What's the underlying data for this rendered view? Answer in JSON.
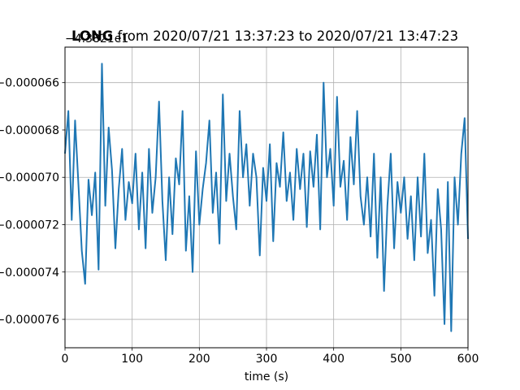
{
  "chart_data": {
    "type": "line",
    "title": "LONG from 2020/07/21 13:37:23 to 2020/07/21 13:47:23",
    "title_bold_part": "LONG",
    "title_rest": " from 2020/07/21 13:37:23 to 2020/07/21 13:47:23",
    "offset_text": "−4.3821e1",
    "xlabel": "time (s)",
    "ylabel": "",
    "xlim": [
      0,
      600
    ],
    "ylim": [
      -7.72e-05,
      -6.45e-05
    ],
    "grid": true,
    "legend": "none",
    "line_color": "#1f77b4",
    "x_ticks": [
      {
        "value": 0,
        "label": "0"
      },
      {
        "value": 100,
        "label": "100"
      },
      {
        "value": 200,
        "label": "200"
      },
      {
        "value": 300,
        "label": "300"
      },
      {
        "value": 400,
        "label": "400"
      },
      {
        "value": 500,
        "label": "500"
      },
      {
        "value": 600,
        "label": "600"
      }
    ],
    "y_ticks": [
      {
        "value": -6.6e-05,
        "label": "−0.000066"
      },
      {
        "value": -6.8e-05,
        "label": "−0.000068"
      },
      {
        "value": -7e-05,
        "label": "−0.000070"
      },
      {
        "value": -7.2e-05,
        "label": "−0.000072"
      },
      {
        "value": -7.4e-05,
        "label": "−0.000074"
      },
      {
        "value": -7.6e-05,
        "label": "−0.000076"
      }
    ],
    "series": [
      {
        "x": [
          0,
          5,
          10,
          15,
          20,
          25,
          30,
          35,
          40,
          45,
          50,
          55,
          60,
          65,
          70,
          75,
          80,
          85,
          90,
          95,
          100,
          105,
          110,
          115,
          120,
          125,
          130,
          135,
          140,
          145,
          150,
          155,
          160,
          165,
          170,
          175,
          180,
          185,
          190,
          195,
          200,
          205,
          210,
          215,
          220,
          225,
          230,
          235,
          240,
          245,
          250,
          255,
          260,
          265,
          270,
          275,
          280,
          285,
          290,
          295,
          300,
          305,
          310,
          315,
          320,
          325,
          330,
          335,
          340,
          345,
          350,
          355,
          360,
          365,
          370,
          375,
          380,
          385,
          390,
          395,
          400,
          405,
          410,
          415,
          420,
          425,
          430,
          435,
          440,
          445,
          450,
          455,
          460,
          465,
          470,
          475,
          480,
          485,
          490,
          495,
          500,
          505,
          510,
          515,
          520,
          525,
          530,
          535,
          540,
          545,
          550,
          555,
          560,
          565,
          570,
          575,
          580,
          585,
          590,
          595,
          600
        ],
        "values": [
          -6.9e-05,
          -6.72e-05,
          -7.18e-05,
          -6.76e-05,
          -7.03e-05,
          -7.31e-05,
          -7.45e-05,
          -7.01e-05,
          -7.16e-05,
          -6.98e-05,
          -7.39e-05,
          -6.52e-05,
          -7.12e-05,
          -6.79e-05,
          -6.97e-05,
          -7.3e-05,
          -7.05e-05,
          -6.88e-05,
          -7.18e-05,
          -7.02e-05,
          -7.11e-05,
          -6.9e-05,
          -7.22e-05,
          -6.98e-05,
          -7.3e-05,
          -6.88e-05,
          -7.15e-05,
          -7e-05,
          -6.68e-05,
          -7.1e-05,
          -7.35e-05,
          -7e-05,
          -7.24e-05,
          -6.92e-05,
          -7.03e-05,
          -6.72e-05,
          -7.31e-05,
          -7.08e-05,
          -7.4e-05,
          -6.89e-05,
          -7.2e-05,
          -7.05e-05,
          -6.94e-05,
          -6.76e-05,
          -7.15e-05,
          -6.98e-05,
          -7.28e-05,
          -6.65e-05,
          -7.1e-05,
          -6.9e-05,
          -7.08e-05,
          -7.22e-05,
          -6.72e-05,
          -7e-05,
          -6.86e-05,
          -7.12e-05,
          -6.9e-05,
          -7e-05,
          -7.33e-05,
          -6.96e-05,
          -7.1e-05,
          -6.86e-05,
          -7.27e-05,
          -6.94e-05,
          -7.04e-05,
          -6.81e-05,
          -7.1e-05,
          -6.98e-05,
          -7.18e-05,
          -6.88e-05,
          -7.05e-05,
          -6.9e-05,
          -7.21e-05,
          -6.89e-05,
          -7.04e-05,
          -6.82e-05,
          -7.22e-05,
          -6.6e-05,
          -7e-05,
          -6.88e-05,
          -7.12e-05,
          -6.66e-05,
          -7.04e-05,
          -6.93e-05,
          -7.18e-05,
          -6.83e-05,
          -7.03e-05,
          -6.72e-05,
          -7.08e-05,
          -7.2e-05,
          -7e-05,
          -7.25e-05,
          -6.9e-05,
          -7.34e-05,
          -7e-05,
          -7.48e-05,
          -7.12e-05,
          -6.9e-05,
          -7.3e-05,
          -7.02e-05,
          -7.15e-05,
          -7e-05,
          -7.26e-05,
          -7.08e-05,
          -7.35e-05,
          -7e-05,
          -7.25e-05,
          -6.9e-05,
          -7.32e-05,
          -7.18e-05,
          -7.5e-05,
          -7.05e-05,
          -7.22e-05,
          -7.62e-05,
          -7.02e-05,
          -7.65e-05,
          -7e-05,
          -7.2e-05,
          -6.9e-05,
          -6.75e-05,
          -7.26e-05
        ]
      }
    ]
  }
}
